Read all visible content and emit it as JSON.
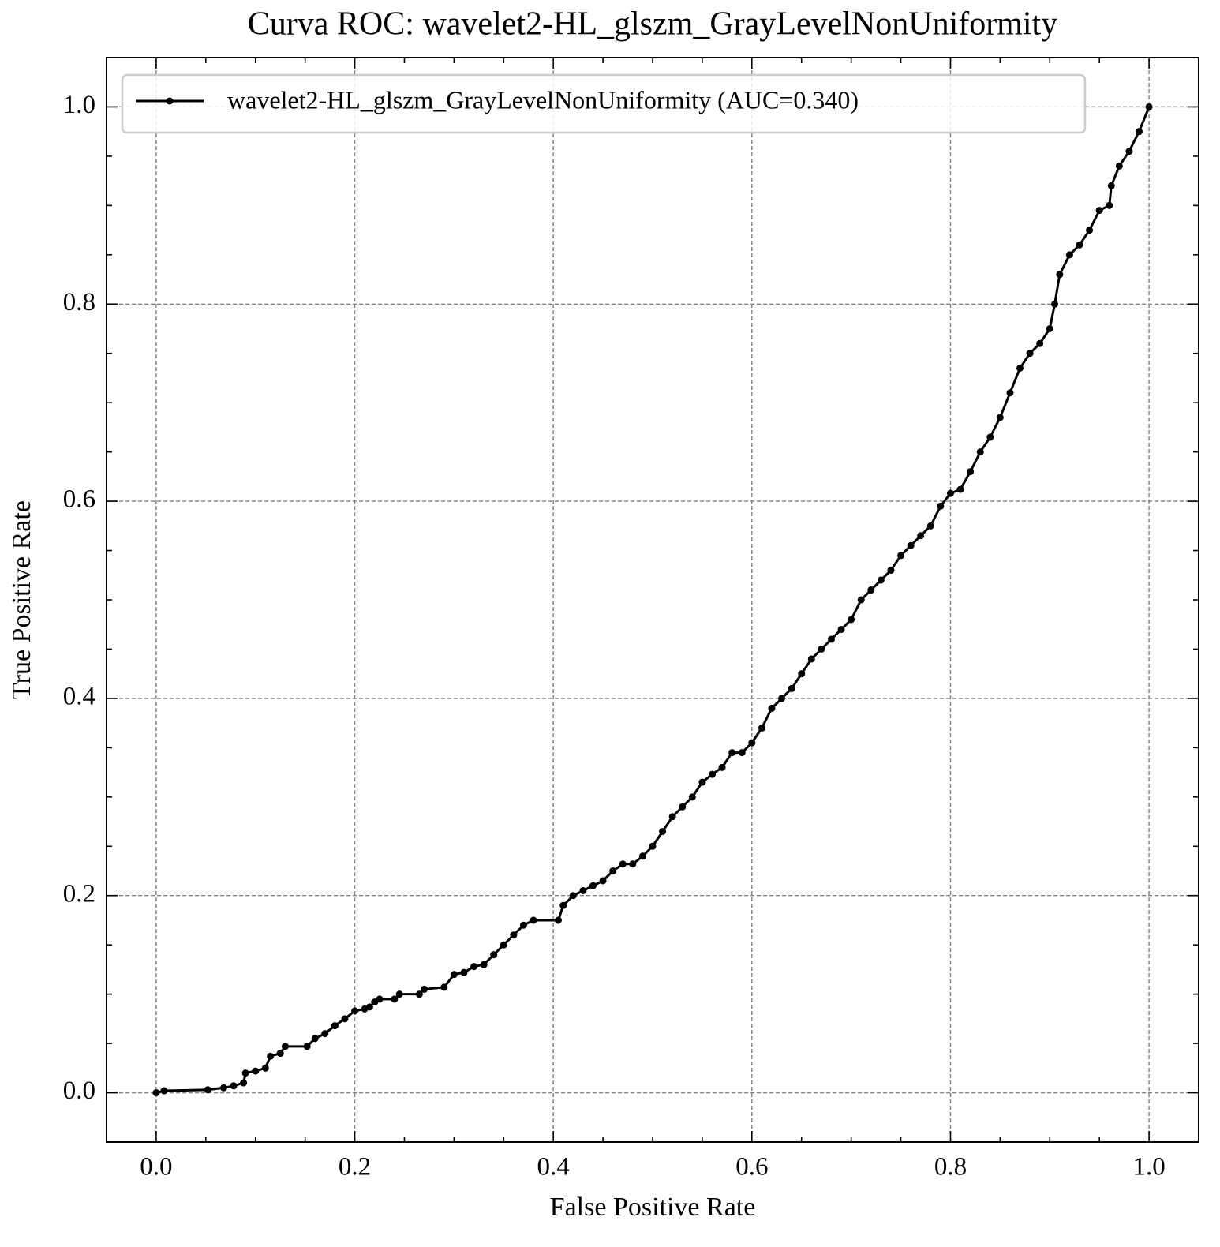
{
  "chart_data": {
    "type": "line",
    "title": "Curva ROC: wavelet2-HL_glszm_GrayLevelNonUniformity",
    "xlabel": "False Positive Rate",
    "ylabel": "True Positive Rate",
    "x": [
      0,
      0.008,
      0.052,
      0.068,
      0.078,
      0.088,
      0.09,
      0.1,
      0.11,
      0.115,
      0.125,
      0.13,
      0.152,
      0.16,
      0.17,
      0.18,
      0.19,
      0.2,
      0.21,
      0.215,
      0.22,
      0.225,
      0.24,
      0.245,
      0.265,
      0.27,
      0.29,
      0.3,
      0.31,
      0.32,
      0.33,
      0.34,
      0.35,
      0.36,
      0.37,
      0.38,
      0.405,
      0.41,
      0.42,
      0.43,
      0.44,
      0.45,
      0.46,
      0.47,
      0.48,
      0.49,
      0.5,
      0.51,
      0.52,
      0.53,
      0.54,
      0.55,
      0.56,
      0.57,
      0.58,
      0.59,
      0.6,
      0.61,
      0.62,
      0.63,
      0.64,
      0.65,
      0.66,
      0.67,
      0.68,
      0.69,
      0.7,
      0.71,
      0.72,
      0.73,
      0.74,
      0.75,
      0.76,
      0.77,
      0.78,
      0.79,
      0.8,
      0.81,
      0.82,
      0.83,
      0.84,
      0.85,
      0.86,
      0.87,
      0.88,
      0.89,
      0.9,
      0.905,
      0.91,
      0.92,
      0.93,
      0.94,
      0.95,
      0.96,
      0.962,
      0.97,
      0.98,
      0.99,
      1
    ],
    "series": [
      {
        "name": "wavelet2-HL_glszm_GrayLevelNonUniformity (AUC=0.340)",
        "color": "#000000",
        "values": [
          0,
          0.002,
          0.003,
          0.005,
          0.007,
          0.01,
          0.02,
          0.022,
          0.025,
          0.037,
          0.04,
          0.047,
          0.047,
          0.055,
          0.06,
          0.068,
          0.075,
          0.083,
          0.085,
          0.087,
          0.092,
          0.095,
          0.095,
          0.1,
          0.1,
          0.105,
          0.107,
          0.12,
          0.122,
          0.128,
          0.13,
          0.14,
          0.15,
          0.16,
          0.17,
          0.175,
          0.175,
          0.19,
          0.2,
          0.205,
          0.21,
          0.215,
          0.225,
          0.232,
          0.232,
          0.24,
          0.25,
          0.265,
          0.28,
          0.29,
          0.3,
          0.315,
          0.323,
          0.33,
          0.345,
          0.345,
          0.355,
          0.37,
          0.39,
          0.4,
          0.41,
          0.425,
          0.44,
          0.45,
          0.46,
          0.47,
          0.48,
          0.5,
          0.51,
          0.52,
          0.53,
          0.545,
          0.555,
          0.565,
          0.575,
          0.595,
          0.608,
          0.612,
          0.63,
          0.65,
          0.665,
          0.685,
          0.71,
          0.735,
          0.75,
          0.76,
          0.775,
          0.8,
          0.83,
          0.85,
          0.86,
          0.875,
          0.895,
          0.9,
          0.92,
          0.94,
          0.955,
          0.975,
          1
        ]
      }
    ],
    "xlim": [
      -0.05,
      1.05
    ],
    "ylim": [
      -0.05,
      1.05
    ],
    "xticks": [
      {
        "value": 0,
        "label": "0.0"
      },
      {
        "value": 0.2,
        "label": "0.2"
      },
      {
        "value": 0.4,
        "label": "0.4"
      },
      {
        "value": 0.6,
        "label": "0.6"
      },
      {
        "value": 0.8,
        "label": "0.8"
      },
      {
        "value": 1,
        "label": "1.0"
      }
    ],
    "yticks": [
      {
        "value": 0,
        "label": "0.0"
      },
      {
        "value": 0.2,
        "label": "0.2"
      },
      {
        "value": 0.4,
        "label": "0.4"
      },
      {
        "value": 0.6,
        "label": "0.6"
      },
      {
        "value": 0.8,
        "label": "0.8"
      },
      {
        "value": 1,
        "label": "1.0"
      }
    ],
    "xminorticks": [
      0.05,
      0.1,
      0.15,
      0.25,
      0.3,
      0.35,
      0.45,
      0.5,
      0.55,
      0.65,
      0.7,
      0.75,
      0.85,
      0.9,
      0.95
    ],
    "yminorticks": [
      0.05,
      0.1,
      0.15,
      0.25,
      0.3,
      0.35,
      0.45,
      0.5,
      0.55,
      0.65,
      0.7,
      0.75,
      0.85,
      0.9,
      0.95
    ],
    "grid": true,
    "legend": "upper left"
  }
}
